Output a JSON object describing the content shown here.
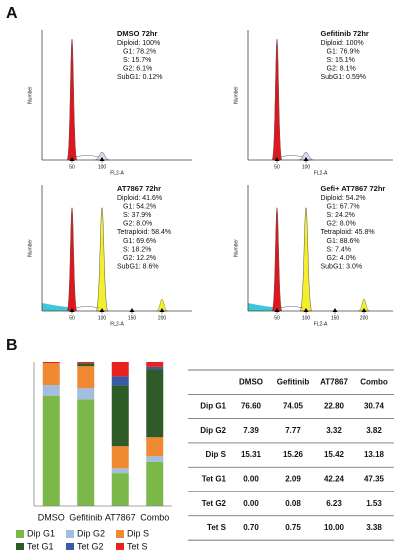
{
  "panel_labels": [
    "A",
    "B"
  ],
  "histograms": [
    {
      "title": "DMSO 72hr",
      "stats": [
        "Diploid: 100%",
        "G1: 78.2%",
        "S: 15.7%",
        "G2: 6.1%",
        "SubG1: 0.12%"
      ],
      "x_label": "FL2-A",
      "y_label": "Number",
      "xlim": [
        0,
        250
      ],
      "xticks": [
        50,
        100
      ]
    },
    {
      "title": "Gefitinib 72hr",
      "stats": [
        "Diploid: 100%",
        "G1: 76.9%",
        "S: 15.1%",
        "G2: 8.1%",
        "SubG1: 0.59%"
      ],
      "x_label": "FL2-A",
      "y_label": "Number",
      "xlim": [
        0,
        250
      ],
      "xticks": [
        50,
        100
      ]
    },
    {
      "title": "AT7867 72hr",
      "stats": [
        "Diploid: 41.6%",
        "G1: 54.2%",
        "S: 37.9%",
        "G2: 8.0%",
        "Tetraploid: 58.4%",
        "G1: 69.6%",
        "S: 18.2%",
        "G2: 12.2%",
        "SubG1: 8.6%"
      ],
      "x_label": "FL2-A",
      "y_label": "Number",
      "xlim": [
        0,
        250
      ],
      "xticks": [
        50,
        100,
        150,
        200
      ]
    },
    {
      "title": "Gefi+ AT7867 72hr",
      "stats": [
        "Diploid: 54.2%",
        "G1: 67.7%",
        "S: 24.2%",
        "G2: 8.0%",
        "Tetraploid: 45.8%",
        "G1: 88.6%",
        "S: 7.4%",
        "G2: 4.0%",
        "SubG1: 3.0%"
      ],
      "x_label": "FL2-A",
      "y_label": "Number",
      "xlim": [
        0,
        250
      ],
      "xticks": [
        50,
        100,
        150,
        200
      ]
    }
  ],
  "chart_data": {
    "type": "stacked_bar",
    "categories": [
      "DMSO",
      "Gefitinib",
      "AT7867",
      "Combo"
    ],
    "ylim": [
      0,
      100
    ],
    "series": [
      {
        "name": "Dip G1",
        "color": "#7cb74a",
        "values": [
          76.6,
          74.05,
          22.8,
          30.74
        ]
      },
      {
        "name": "Dip G2",
        "color": "#a3bde0",
        "values": [
          7.39,
          7.77,
          3.32,
          3.82
        ]
      },
      {
        "name": "Dip S",
        "color": "#f08a32",
        "values": [
          15.31,
          15.26,
          15.42,
          13.18
        ]
      },
      {
        "name": "Tet G1",
        "color": "#2f5b28",
        "values": [
          0.0,
          2.09,
          42.24,
          47.35
        ]
      },
      {
        "name": "Tet G2",
        "color": "#3a5ba8",
        "values": [
          0.0,
          0.08,
          6.23,
          1.53
        ]
      },
      {
        "name": "Tet S",
        "color": "#e8231f",
        "values": [
          0.7,
          0.75,
          10.0,
          3.38
        ]
      }
    ]
  },
  "table": {
    "header": [
      "DMSO",
      "Gefitinib",
      "AT7867",
      "Combo"
    ],
    "rows": [
      [
        "Dip G1",
        "76.60",
        "74.05",
        "22.80",
        "30.74"
      ],
      [
        "Dip G2",
        "7.39",
        "7.77",
        "3.32",
        "3.82"
      ],
      [
        "Dip S",
        "15.31",
        "15.26",
        "15.42",
        "13.18"
      ],
      [
        "Tet G1",
        "0.00",
        "2.09",
        "42.24",
        "47.35"
      ],
      [
        "Tet G2",
        "0.00",
        "0.08",
        "6.23",
        "1.53"
      ],
      [
        "Tet S",
        "0.70",
        "0.75",
        "10.00",
        "3.38"
      ]
    ]
  }
}
